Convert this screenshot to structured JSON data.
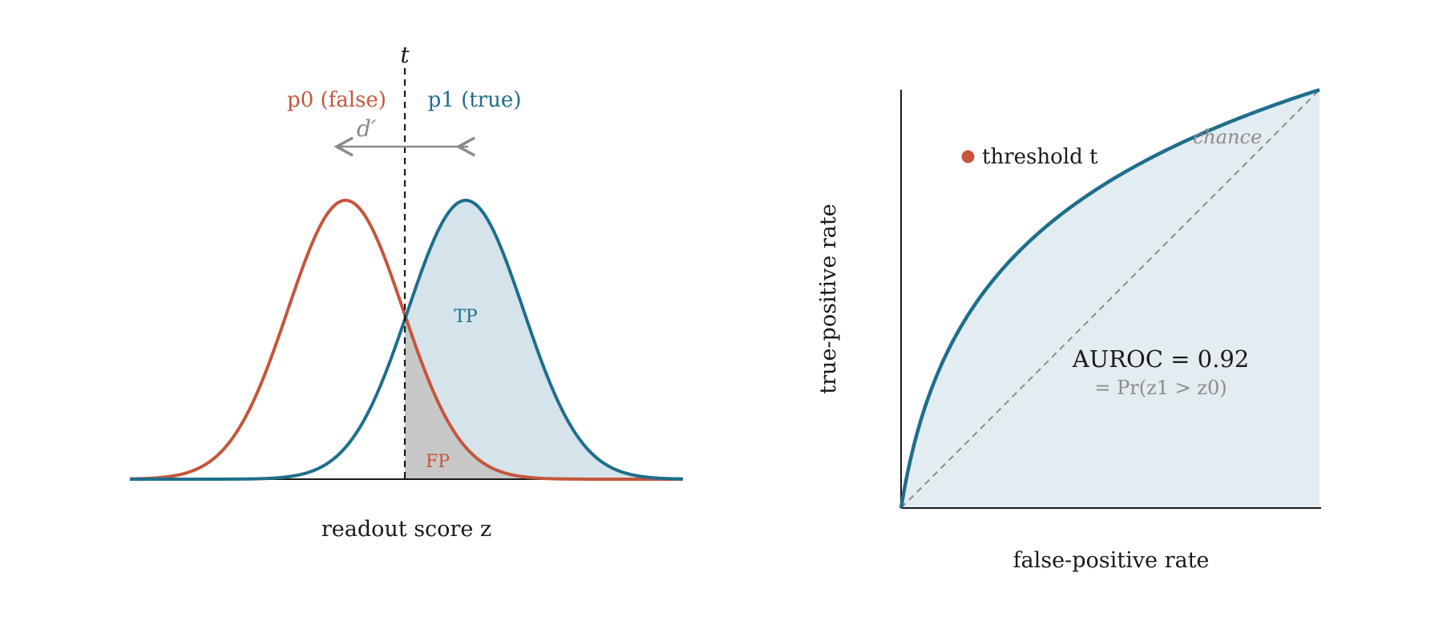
{
  "colors": {
    "p0": "#c4563c",
    "p1": "#1f6e8c",
    "tp_fill": "#d4e4ea",
    "fp_fill": "#c8c8c8",
    "roc_fill": "#e3ecf1",
    "arrow": "#8a8a8a",
    "chance": "#8c8c8c",
    "text": "#1a1a1a"
  },
  "left_panel": {
    "threshold_label": "t",
    "p0_label": "p0 (false)",
    "p1_label": "p1 (true)",
    "dprime_label": "d′",
    "tp_label": "TP",
    "fp_label": "FP",
    "xlabel": "readout score z"
  },
  "right_panel": {
    "xlabel": "false-positive rate",
    "ylabel": "true-positive rate",
    "chance_label": "chance",
    "threshold_point_label": "threshold t",
    "auroc_label": "AUROC = 0.92",
    "auroc_formula": "= Pr(z1 > z0)"
  },
  "chart_data": {
    "type": "line",
    "auroc": 0.92,
    "threshold_point": {
      "fpr": 0.16,
      "tpr": 0.84
    }
  }
}
